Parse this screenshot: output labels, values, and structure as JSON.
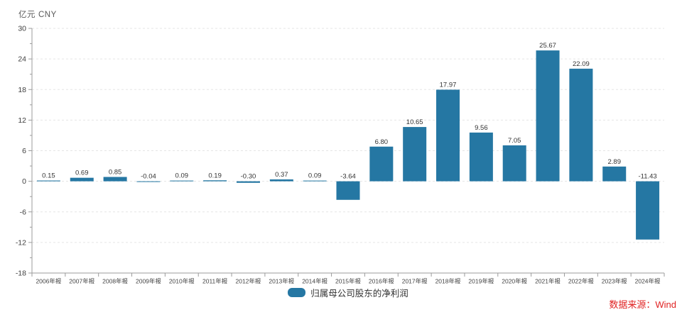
{
  "header": {
    "unit_left": "亿元",
    "unit_right": "CNY"
  },
  "legend": {
    "label": "归属母公司股东的净利润",
    "swatch_color": "#2577a3"
  },
  "source": {
    "label": "数据来源：Wind",
    "color": "#e02222"
  },
  "chart_data": {
    "type": "bar",
    "title": "",
    "unit": "亿元 CNY",
    "categories": [
      "2006年报",
      "2007年报",
      "2008年报",
      "2009年报",
      "2010年报",
      "2011年报",
      "2012年报",
      "2013年报",
      "2014年报",
      "2015年报",
      "2016年报",
      "2017年报",
      "2018年报",
      "2019年报",
      "2020年报",
      "2021年报",
      "2022年报",
      "2023年报",
      "2024年报"
    ],
    "series": [
      {
        "name": "归属母公司股东的净利润",
        "values": [
          0.15,
          0.69,
          0.85,
          -0.04,
          0.09,
          0.19,
          -0.3,
          0.37,
          0.09,
          -3.64,
          6.8,
          10.65,
          17.97,
          9.56,
          7.05,
          25.67,
          22.09,
          2.89,
          -11.43
        ],
        "labels": [
          "0.15",
          "0.69",
          "0.85",
          "-0.04",
          "0.09",
          "0.19",
          "-0.30",
          "0.37",
          "0.09",
          "-3.64",
          "6.80",
          "10.65",
          "17.97",
          "9.56",
          "7.05",
          "25.67",
          "22.09",
          "2.89",
          "-11.43"
        ],
        "color": "#2577a3"
      }
    ],
    "xlabel": "",
    "ylabel": "亿元 CNY",
    "ylim": [
      -18,
      30
    ],
    "ytick_interval": 6,
    "yticks": [
      30,
      24,
      18,
      12,
      6,
      0,
      -6,
      -12,
      -18
    ],
    "grid": "horizontal-dashed",
    "legend_position": "bottom-center",
    "colors": {
      "bar": "#2577a3",
      "grid": "#e5e5e5",
      "axis": "#9b9b9b",
      "value_label": "#333333",
      "tick_label": "#404040",
      "x_label": "#444444"
    }
  }
}
